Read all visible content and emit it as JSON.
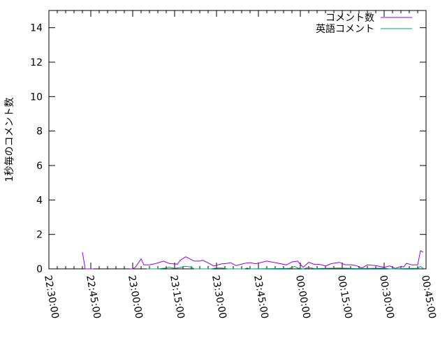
{
  "chart_data": {
    "type": "line",
    "title": "",
    "xlabel": "",
    "ylabel": "1秒毎のコメント数",
    "xlim": [
      "22:30:00",
      "00:45:00"
    ],
    "ylim": [
      0,
      15
    ],
    "xticks": [
      "22:30:00",
      "22:45:00",
      "23:00:00",
      "23:15:00",
      "23:30:00",
      "23:45:00",
      "00:00:00",
      "00:15:00",
      "00:30:00",
      "00:45:00"
    ],
    "yticks": [
      "0",
      "2",
      "4",
      "6",
      "8",
      "10",
      "12",
      "14"
    ],
    "grid": false,
    "legend_position": "top-right",
    "series": [
      {
        "name": "コメント数",
        "color": "#9400d3",
        "points": [
          [
            "22:42",
            0.97
          ],
          [
            "22:43",
            0
          ],
          [
            "22:46",
            0
          ],
          [
            null,
            null
          ],
          [
            "22:59",
            0
          ],
          [
            "23:00",
            0
          ],
          [
            "23:01",
            0.1
          ],
          [
            "23:03",
            0.58
          ],
          [
            "23:04",
            0.23
          ],
          [
            "23:06",
            0.23
          ],
          [
            "23:08",
            0.3
          ],
          [
            "23:11",
            0.45
          ],
          [
            "23:13",
            0.32
          ],
          [
            "23:14",
            0.3
          ],
          [
            "23:16",
            0.27
          ],
          [
            "23:17",
            0.5
          ],
          [
            "23:19",
            0.7
          ],
          [
            "23:22",
            0.45
          ],
          [
            "23:24",
            0.45
          ],
          [
            "23:25",
            0.5
          ],
          [
            "23:27",
            0.35
          ],
          [
            "23:29",
            0.17
          ],
          [
            "23:32",
            0.3
          ],
          [
            "23:33",
            0.3
          ],
          [
            "23:35",
            0.36
          ],
          [
            "23:37",
            0.19
          ],
          [
            "23:40",
            0.32
          ],
          [
            "23:42",
            0.36
          ],
          [
            "23:44",
            0.3
          ],
          [
            "23:48",
            0.45
          ],
          [
            "23:51",
            0.36
          ],
          [
            "23:55",
            0.23
          ],
          [
            "23:57",
            0.4
          ],
          [
            "23:59",
            0.45
          ],
          [
            "00:01",
            0.09
          ],
          [
            "00:03",
            0.38
          ],
          [
            "00:05",
            0.26
          ],
          [
            "00:07",
            0.26
          ],
          [
            "00:09",
            0.17
          ],
          [
            "00:11",
            0.3
          ],
          [
            "00:14",
            0.38
          ],
          [
            "00:16",
            0.24
          ],
          [
            "00:18",
            0.24
          ],
          [
            "00:20",
            0.19
          ],
          [
            "00:22",
            0.05
          ],
          [
            "00:24",
            0.23
          ],
          [
            "00:27",
            0.19
          ],
          [
            "00:30",
            0.09
          ],
          [
            "00:32",
            0.17
          ],
          [
            "00:34",
            0.03
          ],
          [
            "00:36",
            0.14
          ],
          [
            "00:37",
            0.11
          ],
          [
            "00:38",
            0.32
          ],
          [
            "00:40",
            0.23
          ],
          [
            "00:42",
            0.23
          ],
          [
            "00:43",
            1.05
          ],
          [
            "00:44",
            0.97
          ]
        ]
      },
      {
        "name": "英語コメント",
        "color": "#009e73",
        "points": [
          [
            "23:05",
            0
          ],
          [
            "23:09",
            0
          ],
          [
            "23:12",
            0.05
          ],
          [
            "23:13",
            0.1
          ],
          [
            "23:15",
            0.03
          ],
          [
            "23:17",
            0.08
          ],
          [
            "23:19",
            0.15
          ],
          [
            "23:21",
            0.1
          ],
          [
            "23:22",
            0
          ],
          [
            "23:28",
            0
          ],
          [
            "23:30",
            0.05
          ],
          [
            "23:32",
            0.05
          ],
          [
            "23:34",
            0
          ],
          [
            "23:40",
            0
          ],
          [
            "23:41",
            0.05
          ],
          [
            "23:42",
            0
          ],
          [
            "23:56",
            0.03
          ],
          [
            "23:58",
            0.14
          ],
          [
            "23:59",
            0.05
          ],
          [
            "00:01",
            0
          ],
          [
            "00:03",
            0.08
          ],
          [
            "00:05",
            0.02
          ],
          [
            "00:12",
            0.04
          ],
          [
            "00:14",
            0.05
          ],
          [
            "00:20",
            0.02
          ],
          [
            "00:30",
            0.04
          ],
          [
            "00:32",
            0
          ],
          [
            "00:40",
            0.03
          ],
          [
            "00:42",
            0.03
          ],
          [
            "00:43",
            0.14
          ],
          [
            "00:44",
            0.03
          ]
        ]
      }
    ]
  }
}
